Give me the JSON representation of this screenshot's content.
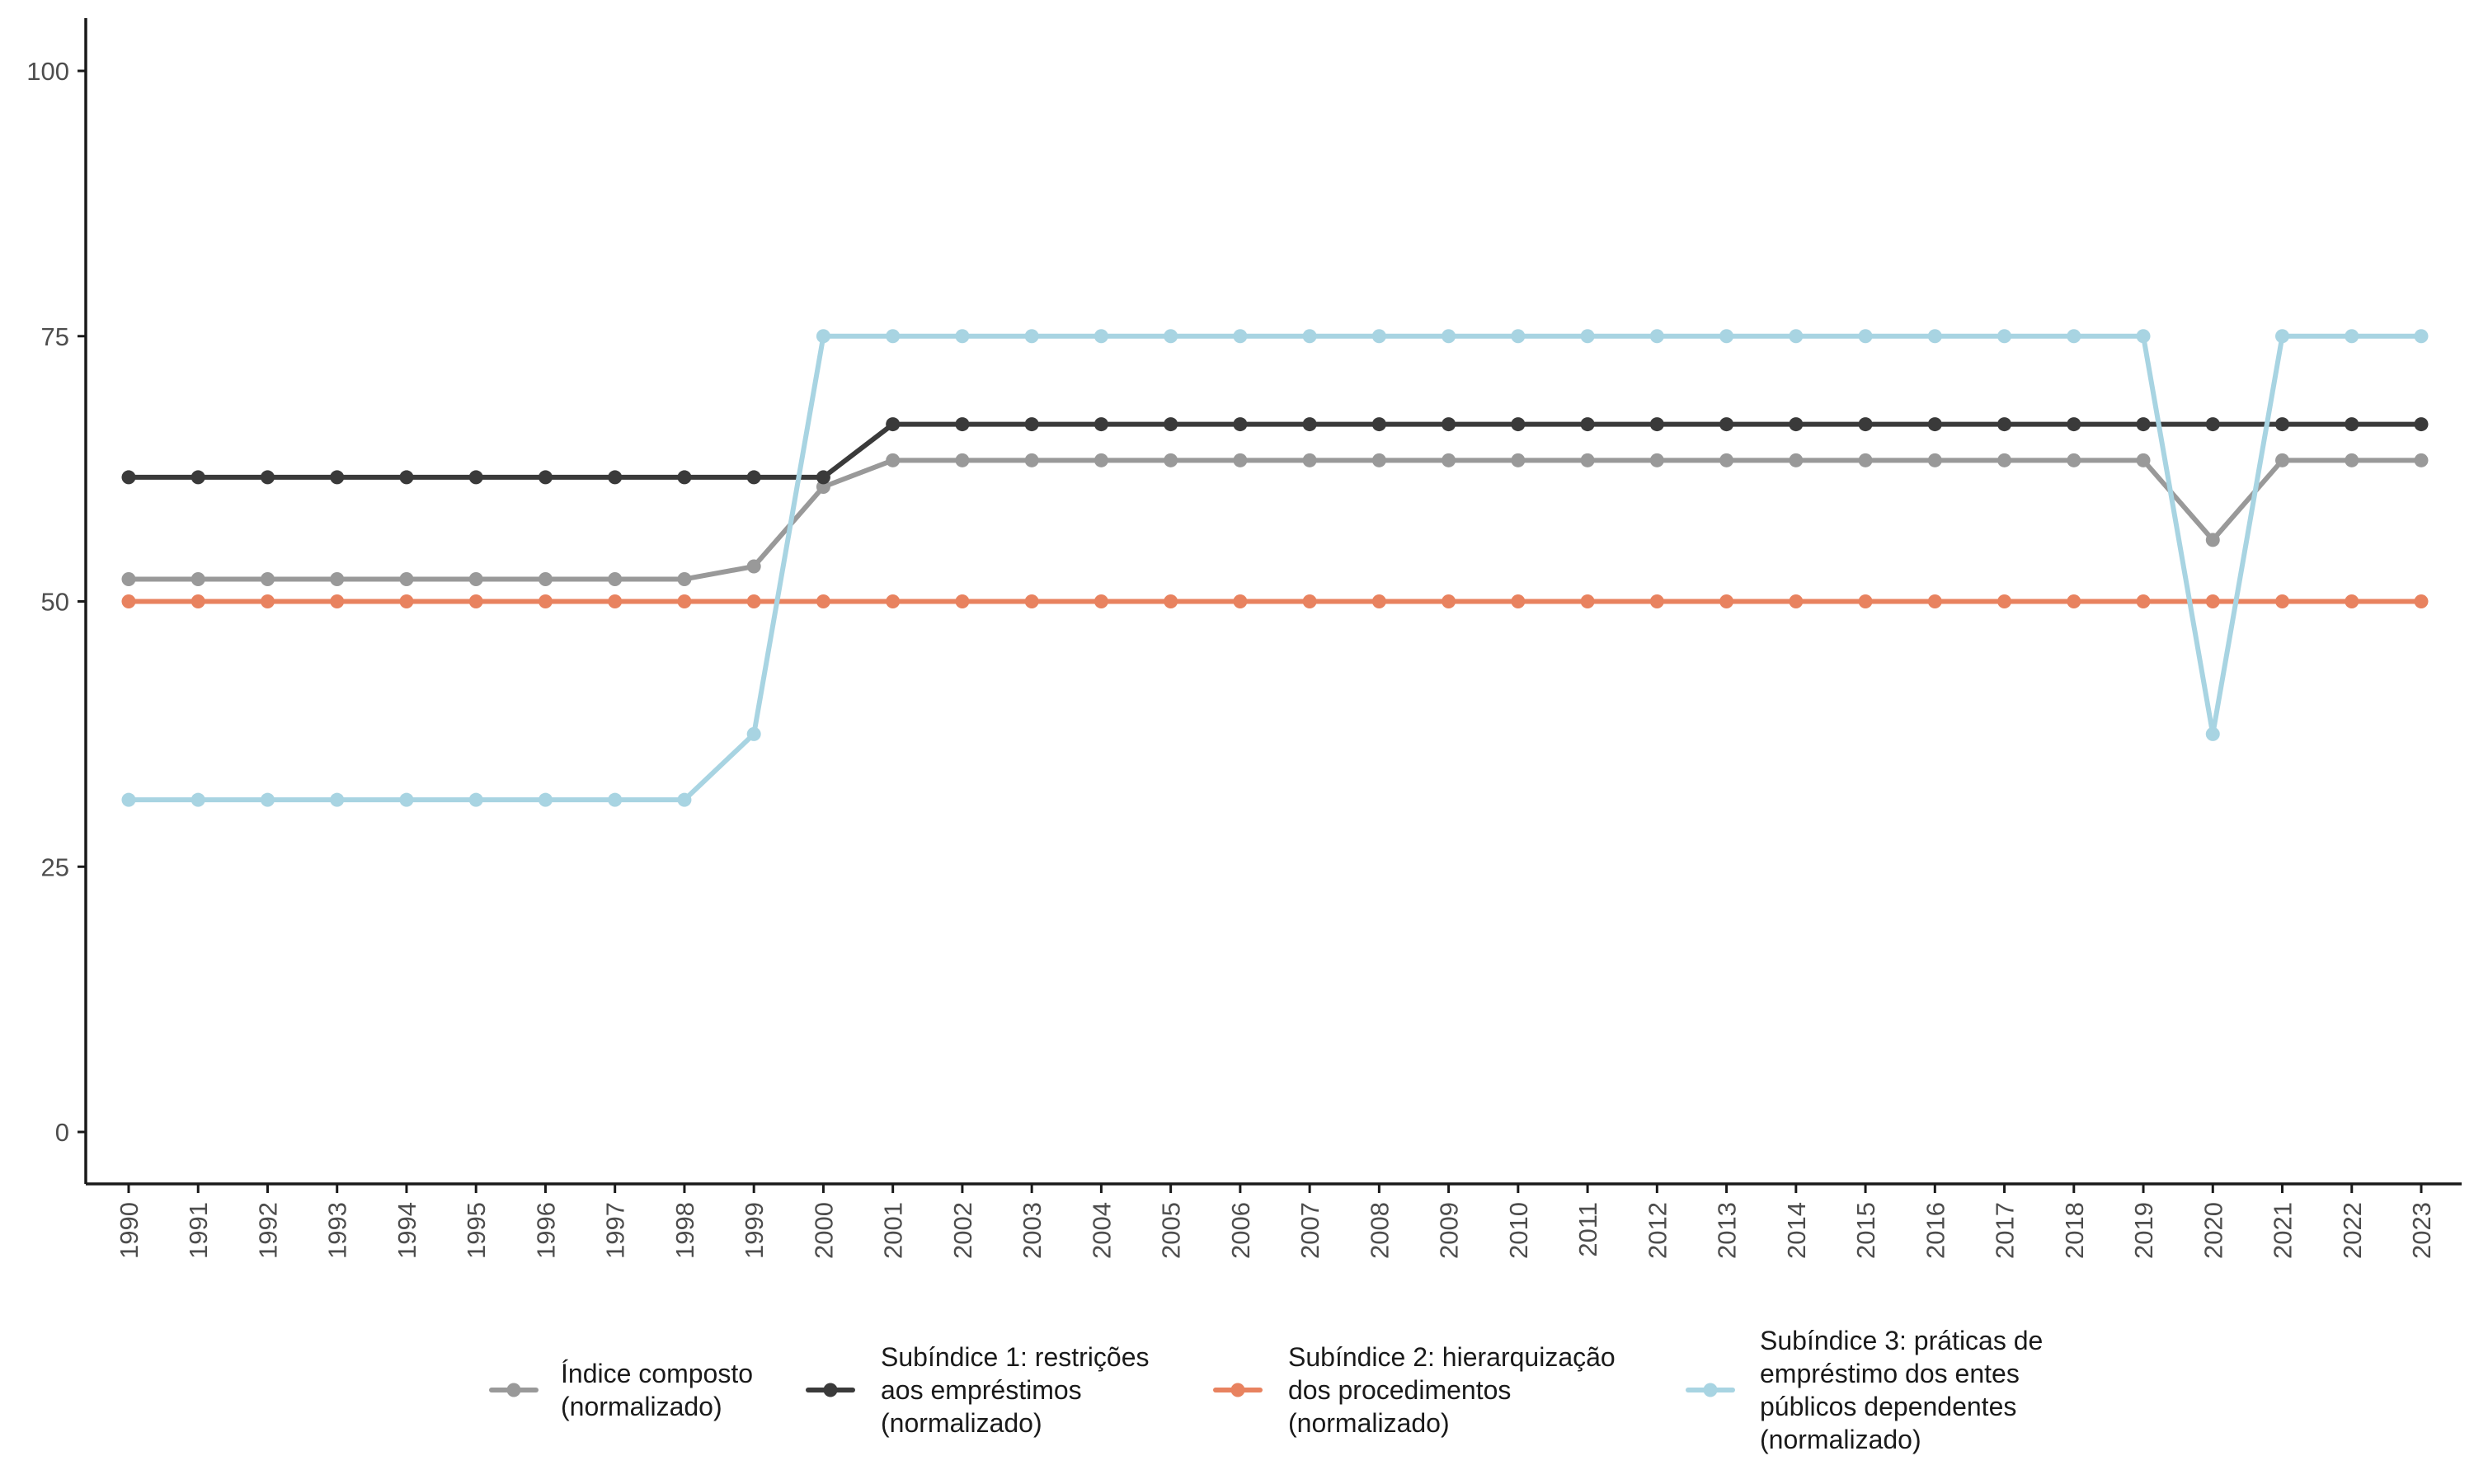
{
  "chart_data": {
    "type": "line",
    "x": [
      1990,
      1991,
      1992,
      1993,
      1994,
      1995,
      1996,
      1997,
      1998,
      1999,
      2000,
      2001,
      2002,
      2003,
      2004,
      2005,
      2006,
      2007,
      2008,
      2009,
      2010,
      2011,
      2012,
      2013,
      2014,
      2015,
      2016,
      2017,
      2018,
      2019,
      2020,
      2021,
      2022,
      2023
    ],
    "x_tick_labels": [
      "1990",
      "1991",
      "1992",
      "1993",
      "1994",
      "1995",
      "1996",
      "1997",
      "1998",
      "1999",
      "2000",
      "2001",
      "2002",
      "2003",
      "2004",
      "2005",
      "2006",
      "2007",
      "2008",
      "2009",
      "2010",
      "2011",
      "2012",
      "2013",
      "2014",
      "2015",
      "2016",
      "2017",
      "2018",
      "2019",
      "2020",
      "2021",
      "2022",
      "2023"
    ],
    "ylim": [
      -5,
      105
    ],
    "y_ticks": [
      0,
      25,
      50,
      75,
      100
    ],
    "y_tick_labels": [
      "0",
      "25",
      "50",
      "75",
      "100"
    ],
    "title": "",
    "xlabel": "",
    "ylabel": "",
    "grid": false,
    "legend_position": "bottom",
    "series": [
      {
        "name": "Índice composto (normalizado)",
        "legend_lines": [
          "Índice composto",
          "(normalizado)"
        ],
        "color": "#999999",
        "values": [
          52.1,
          52.1,
          52.1,
          52.1,
          52.1,
          52.1,
          52.1,
          52.1,
          52.1,
          53.3,
          60.8,
          63.3,
          63.3,
          63.3,
          63.3,
          63.3,
          63.3,
          63.3,
          63.3,
          63.3,
          63.3,
          63.3,
          63.3,
          63.3,
          63.3,
          63.3,
          63.3,
          63.3,
          63.3,
          63.3,
          55.8,
          63.3,
          63.3,
          63.3
        ]
      },
      {
        "name": "Subíndice 1: restrições aos empréstimos (normalizado)",
        "legend_lines": [
          "Subíndice 1: restrições",
          "aos empréstimos",
          "(normalizado)"
        ],
        "color": "#3a3a3a",
        "values": [
          61.7,
          61.7,
          61.7,
          61.7,
          61.7,
          61.7,
          61.7,
          61.7,
          61.7,
          61.7,
          61.7,
          66.7,
          66.7,
          66.7,
          66.7,
          66.7,
          66.7,
          66.7,
          66.7,
          66.7,
          66.7,
          66.7,
          66.7,
          66.7,
          66.7,
          66.7,
          66.7,
          66.7,
          66.7,
          66.7,
          66.7,
          66.7,
          66.7,
          66.7
        ]
      },
      {
        "name": "Subíndice 2: hierarquização dos procedimentos (normalizado)",
        "legend_lines": [
          "Subíndice 2: hierarquização",
          "dos procedimentos",
          "(normalizado)"
        ],
        "color": "#e8825f",
        "values": [
          50,
          50,
          50,
          50,
          50,
          50,
          50,
          50,
          50,
          50,
          50,
          50,
          50,
          50,
          50,
          50,
          50,
          50,
          50,
          50,
          50,
          50,
          50,
          50,
          50,
          50,
          50,
          50,
          50,
          50,
          50,
          50,
          50,
          50
        ]
      },
      {
        "name": "Subíndice 3: práticas de empréstimo dos entes públicos dependentes (normalizado)",
        "legend_lines": [
          "Subíndice 3: práticas de",
          "empréstimo dos entes",
          "públicos dependentes",
          "(normalizado)"
        ],
        "color": "#a8d4e2",
        "values": [
          31.3,
          31.3,
          31.3,
          31.3,
          31.3,
          31.3,
          31.3,
          31.3,
          31.3,
          37.5,
          75,
          75,
          75,
          75,
          75,
          75,
          75,
          75,
          75,
          75,
          75,
          75,
          75,
          75,
          75,
          75,
          75,
          75,
          75,
          75,
          37.5,
          75,
          75,
          75
        ]
      }
    ]
  }
}
